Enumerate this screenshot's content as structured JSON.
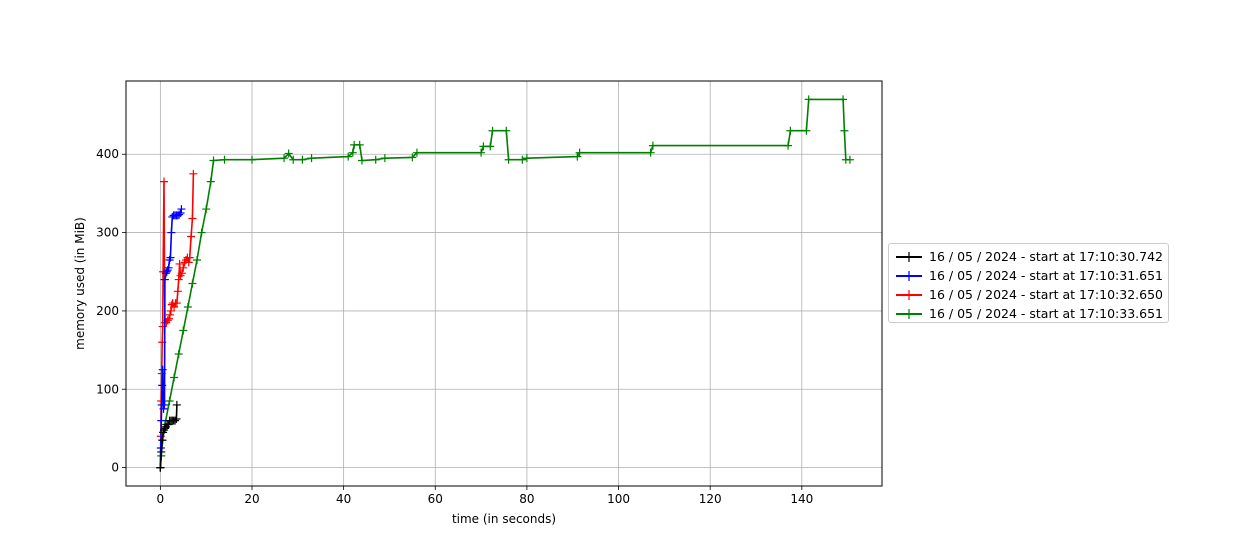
{
  "chart_data": {
    "type": "line",
    "xlabel": "time (in seconds)",
    "ylabel": "memory used (in MiB)",
    "xlim": [
      -7.5,
      157.5
    ],
    "ylim": [
      -23.5,
      493.5
    ],
    "xticks": [
      0,
      20,
      40,
      60,
      80,
      100,
      120,
      140
    ],
    "yticks": [
      0,
      100,
      200,
      300,
      400
    ],
    "grid": true,
    "legend_position": "right",
    "marker": "+",
    "series": [
      {
        "name": "16 / 05 / 2024 - start at 17:10:30.742",
        "color": "#000000",
        "points": [
          [
            0,
            0
          ],
          [
            0.2,
            20
          ],
          [
            0.4,
            35
          ],
          [
            0.6,
            45
          ],
          [
            0.8,
            48
          ],
          [
            1.0,
            50
          ],
          [
            1.2,
            52
          ],
          [
            1.5,
            55
          ],
          [
            1.8,
            55
          ],
          [
            2.0,
            60
          ],
          [
            2.3,
            60
          ],
          [
            2.6,
            60
          ],
          [
            2.9,
            60
          ],
          [
            3.2,
            60
          ],
          [
            3.5,
            62
          ],
          [
            3.6,
            80
          ]
        ]
      },
      {
        "name": "16 / 05 / 2024 - start at 17:10:31.651",
        "color": "#0000ff",
        "points": [
          [
            0,
            0
          ],
          [
            0.1,
            25
          ],
          [
            0.2,
            60
          ],
          [
            0.3,
            80
          ],
          [
            0.4,
            105
          ],
          [
            0.5,
            125
          ],
          [
            0.7,
            75
          ],
          [
            0.9,
            80
          ],
          [
            1.0,
            240
          ],
          [
            1.2,
            248
          ],
          [
            1.4,
            250
          ],
          [
            1.6,
            252
          ],
          [
            1.8,
            255
          ],
          [
            2.0,
            265
          ],
          [
            2.2,
            268
          ],
          [
            2.4,
            300
          ],
          [
            2.6,
            320
          ],
          [
            2.9,
            322
          ],
          [
            3.2,
            322
          ],
          [
            3.5,
            322
          ],
          [
            3.8,
            322
          ],
          [
            4.1,
            323
          ],
          [
            4.4,
            325
          ],
          [
            4.6,
            330
          ]
        ]
      },
      {
        "name": "16 / 05 / 2024 - start at 17:10:32.650",
        "color": "#ff0000",
        "points": [
          [
            0,
            0
          ],
          [
            0.1,
            40
          ],
          [
            0.2,
            85
          ],
          [
            0.3,
            120
          ],
          [
            0.4,
            160
          ],
          [
            0.5,
            180
          ],
          [
            0.6,
            250
          ],
          [
            0.8,
            365
          ],
          [
            0.9,
            240
          ],
          [
            1.0,
            185
          ],
          [
            1.3,
            185
          ],
          [
            1.6,
            188
          ],
          [
            1.9,
            190
          ],
          [
            2.1,
            195
          ],
          [
            2.3,
            200
          ],
          [
            2.5,
            208
          ],
          [
            2.7,
            210
          ],
          [
            3.0,
            205
          ],
          [
            3.3,
            210
          ],
          [
            3.6,
            210
          ],
          [
            3.8,
            225
          ],
          [
            4.0,
            240
          ],
          [
            4.2,
            260
          ],
          [
            4.4,
            245
          ],
          [
            4.7,
            248
          ],
          [
            5.0,
            255
          ],
          [
            5.3,
            262
          ],
          [
            5.6,
            265
          ],
          [
            5.9,
            268
          ],
          [
            6.2,
            262
          ],
          [
            6.4,
            268
          ],
          [
            6.7,
            295
          ],
          [
            7.0,
            318
          ],
          [
            7.2,
            375
          ]
        ]
      },
      {
        "name": "16 / 05 / 2024 - start at 17:10:33.651",
        "color": "#008000",
        "points": [
          [
            0,
            0
          ],
          [
            0.2,
            15
          ],
          [
            0.5,
            35
          ],
          [
            1.0,
            55
          ],
          [
            2,
            85
          ],
          [
            3,
            115
          ],
          [
            4,
            145
          ],
          [
            5,
            175
          ],
          [
            6,
            205
          ],
          [
            7,
            235
          ],
          [
            8,
            265
          ],
          [
            9,
            300
          ],
          [
            10,
            330
          ],
          [
            11,
            365
          ],
          [
            11.6,
            392
          ],
          [
            14,
            393
          ],
          [
            20,
            393
          ],
          [
            27,
            395
          ],
          [
            28,
            401
          ],
          [
            29,
            393
          ],
          [
            31,
            393
          ],
          [
            33,
            395
          ],
          [
            41,
            397
          ],
          [
            42,
            402
          ],
          [
            42.3,
            412
          ],
          [
            43.5,
            412
          ],
          [
            44,
            392
          ],
          [
            47,
            393
          ],
          [
            49,
            395
          ],
          [
            55,
            396
          ],
          [
            56,
            402
          ],
          [
            70,
            402
          ],
          [
            70.5,
            410
          ],
          [
            72,
            410
          ],
          [
            72.5,
            430
          ],
          [
            75.5,
            430
          ],
          [
            76,
            393
          ],
          [
            79,
            393
          ],
          [
            80,
            395
          ],
          [
            91,
            397
          ],
          [
            91.5,
            402
          ],
          [
            107,
            402
          ],
          [
            107.5,
            411
          ],
          [
            137,
            411
          ],
          [
            137.5,
            430
          ],
          [
            141,
            430
          ],
          [
            141.5,
            470
          ],
          [
            149,
            470
          ],
          [
            149.3,
            430
          ],
          [
            149.6,
            393
          ],
          [
            150.5,
            393
          ]
        ]
      }
    ]
  }
}
